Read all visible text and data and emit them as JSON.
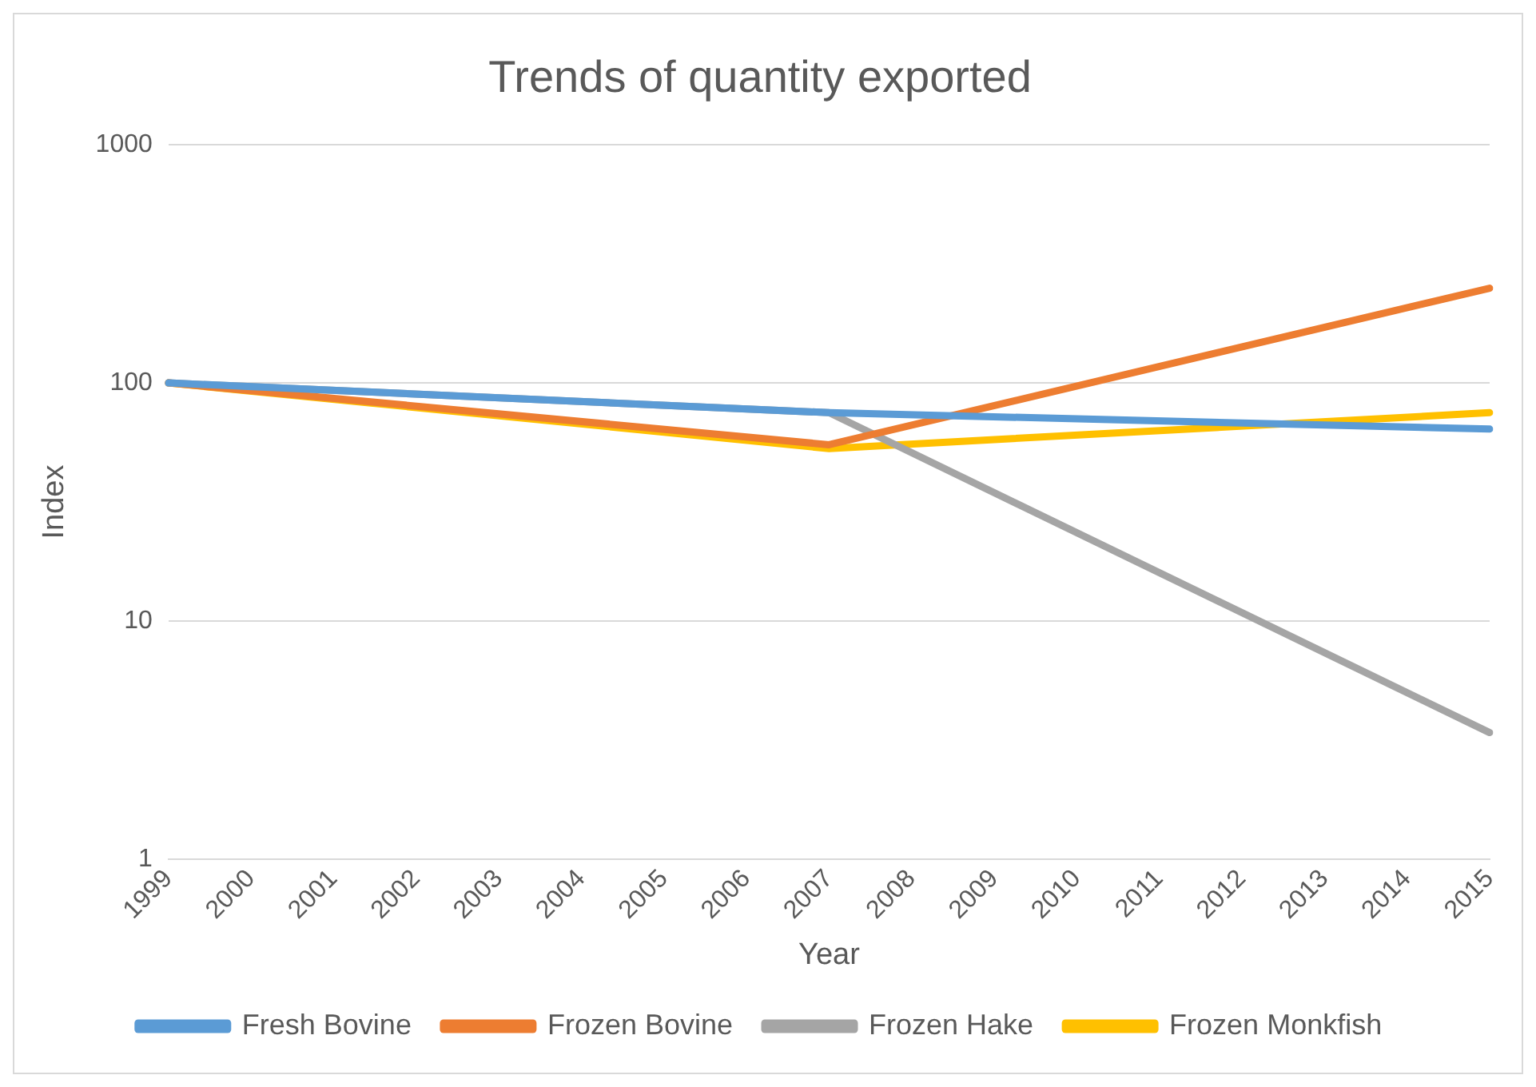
{
  "chart_data": {
    "type": "line",
    "title": "Trends of quantity exported",
    "xlabel": "Year",
    "ylabel": "Index",
    "categories": [
      "1999",
      "2000",
      "2001",
      "2002",
      "2003",
      "2004",
      "2005",
      "2006",
      "2007",
      "2008",
      "2009",
      "2010",
      "2011",
      "2012",
      "2013",
      "2014",
      "2015"
    ],
    "series": [
      {
        "name": "Fresh Bovine",
        "color": "#5b9bd5",
        "values": [
          100,
          null,
          null,
          null,
          null,
          null,
          null,
          null,
          75,
          null,
          null,
          null,
          null,
          null,
          null,
          null,
          64
        ]
      },
      {
        "name": "Frozen Bovine",
        "color": "#ed7d31",
        "values": [
          100,
          null,
          null,
          null,
          null,
          null,
          null,
          null,
          55,
          null,
          null,
          null,
          null,
          null,
          null,
          null,
          250
        ]
      },
      {
        "name": "Frozen Hake",
        "color": "#a5a5a5",
        "values": [
          100,
          null,
          null,
          null,
          null,
          null,
          null,
          null,
          75,
          null,
          null,
          null,
          null,
          null,
          null,
          null,
          3.4
        ]
      },
      {
        "name": "Frozen Monkfish",
        "color": "#ffc000",
        "values": [
          100,
          null,
          null,
          null,
          null,
          null,
          null,
          null,
          53,
          null,
          null,
          null,
          null,
          null,
          null,
          null,
          75
        ]
      }
    ],
    "log": "y",
    "ylim": [
      1,
      1000
    ],
    "yticks": [
      1,
      10,
      100,
      1000
    ],
    "grid": "y",
    "legend": "bottom",
    "marker": "none",
    "line_style": "solid"
  }
}
